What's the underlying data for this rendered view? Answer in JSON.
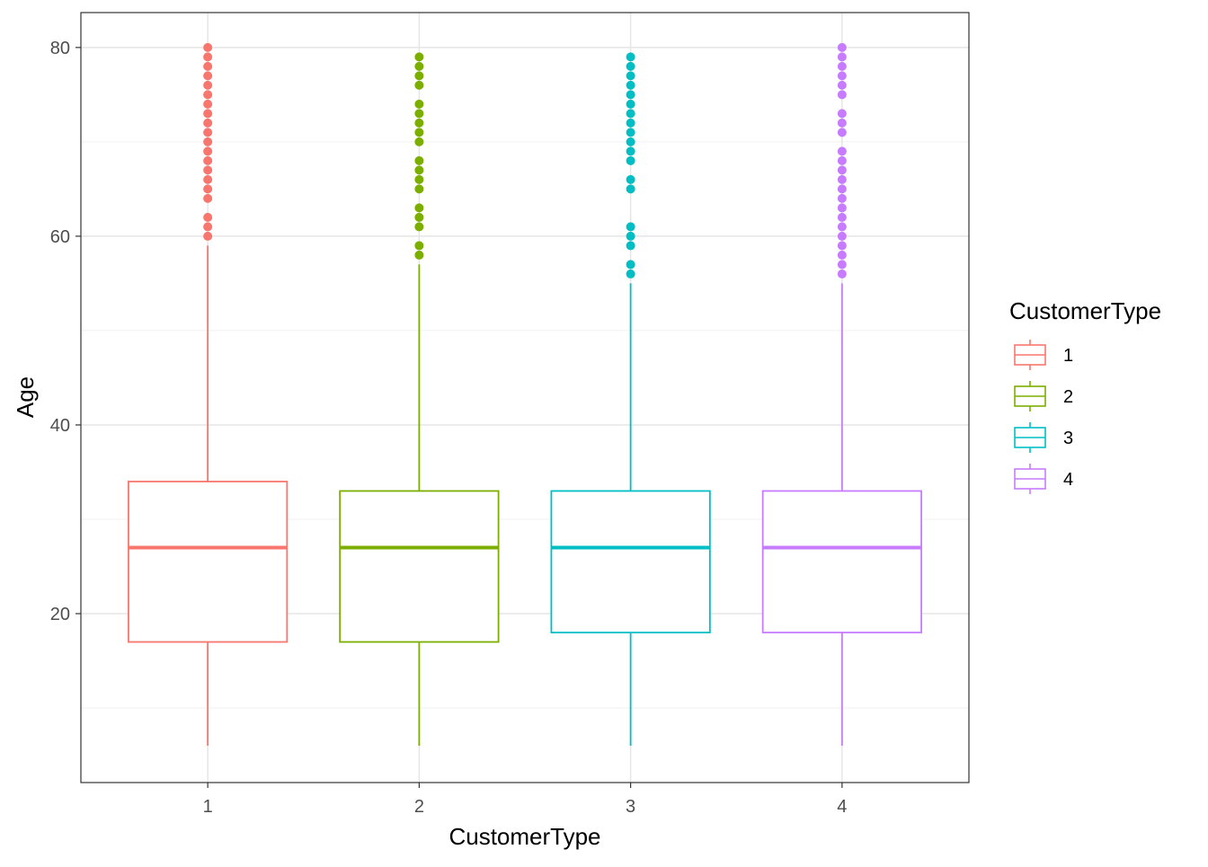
{
  "chart_data": {
    "type": "boxplot",
    "xlabel": "CustomerType",
    "ylabel": "Age",
    "ylim": [
      2.1,
      83.7
    ],
    "y_ticks": [
      20,
      40,
      60,
      80
    ],
    "grid": true,
    "legend": {
      "title": "CustomerType",
      "position": "right"
    },
    "categories": [
      "1",
      "2",
      "3",
      "4"
    ],
    "colors": [
      "#F8766D",
      "#7CAE00",
      "#00BFC4",
      "#C77CFF"
    ],
    "boxes": [
      {
        "name": "1",
        "whisker_low": 6,
        "q1": 17,
        "median": 27,
        "q3": 34,
        "whisker_high": 59,
        "outliers": [
          60,
          61,
          62,
          64,
          65,
          66,
          67,
          68,
          69,
          70,
          71,
          72,
          73,
          74,
          75,
          76,
          77,
          78,
          79,
          80
        ]
      },
      {
        "name": "2",
        "whisker_low": 6,
        "q1": 17,
        "median": 27,
        "q3": 33,
        "whisker_high": 57,
        "outliers": [
          58,
          59,
          61,
          62,
          63,
          65,
          66,
          67,
          68,
          70,
          71,
          72,
          73,
          74,
          76,
          77,
          78,
          79
        ]
      },
      {
        "name": "3",
        "whisker_low": 6,
        "q1": 18,
        "median": 27,
        "q3": 33,
        "whisker_high": 55,
        "outliers": [
          56,
          57,
          59,
          60,
          61,
          65,
          66,
          68,
          69,
          70,
          71,
          72,
          73,
          74,
          75,
          76,
          77,
          78,
          79
        ]
      },
      {
        "name": "4",
        "whisker_low": 6,
        "q1": 18,
        "median": 27,
        "q3": 33,
        "whisker_high": 55,
        "outliers": [
          56,
          57,
          58,
          59,
          60,
          61,
          62,
          63,
          64,
          65,
          66,
          67,
          68,
          69,
          71,
          72,
          73,
          75,
          76,
          77,
          78,
          79,
          80
        ]
      }
    ]
  }
}
